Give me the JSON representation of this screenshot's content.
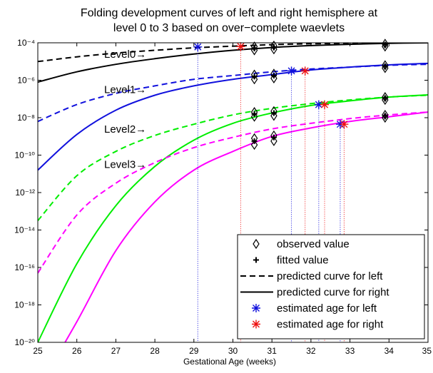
{
  "chart_data": {
    "type": "line",
    "title_line1": "Folding development curves of left and right hemisphere at",
    "title_line2": "level 0 to 3 based on over−complete waevlets",
    "xlabel": "Gestational Age (weeks)",
    "ylabel": "",
    "xlim": [
      25,
      35
    ],
    "ylim": [
      1e-20,
      0.0001
    ],
    "yscale": "log",
    "grid": false,
    "x_ticks": [
      25,
      26,
      27,
      28,
      29,
      30,
      31,
      32,
      33,
      34,
      35
    ],
    "x_tick_labels": [
      "25",
      "26",
      "27",
      "28",
      "29",
      "30",
      "31",
      "32",
      "33",
      "34",
      "35"
    ],
    "y_tick_exponents": [
      -4,
      -6,
      -8,
      -10,
      -12,
      -14,
      -16,
      -18,
      -20
    ],
    "y_tick_labels": [
      "10⁻⁴",
      "10⁻⁶",
      "10⁻⁸",
      "10⁻¹⁰",
      "10⁻¹²",
      "10⁻¹⁴",
      "10⁻¹⁶",
      "10⁻¹⁸",
      "10⁻²⁰"
    ],
    "x": [
      25,
      26,
      27,
      28,
      29,
      30,
      31,
      32,
      33,
      34,
      35
    ],
    "series": [
      {
        "name": "Level0 left",
        "level": 0,
        "side": "left",
        "color": "#000000",
        "dashed": true,
        "log10_values": [
          -5.0,
          -4.75,
          -4.55,
          -4.4,
          -4.27,
          -4.18,
          -4.1,
          -4.05,
          -4.02,
          -3.99,
          -3.97
        ]
      },
      {
        "name": "Level0 right",
        "level": 0,
        "side": "right",
        "color": "#000000",
        "dashed": false,
        "log10_values": [
          -6.1,
          -5.55,
          -5.15,
          -4.85,
          -4.6,
          -4.4,
          -4.25,
          -4.15,
          -4.08,
          -4.03,
          -4.0
        ]
      },
      {
        "name": "Level1 left",
        "level": 1,
        "side": "left",
        "color": "#1111dd",
        "dashed": true,
        "log10_values": [
          -8.2,
          -7.3,
          -6.7,
          -6.3,
          -5.95,
          -5.75,
          -5.55,
          -5.4,
          -5.3,
          -5.2,
          -5.15
        ]
      },
      {
        "name": "Level1 right",
        "level": 1,
        "side": "right",
        "color": "#1111dd",
        "dashed": false,
        "log10_values": [
          -10.8,
          -8.9,
          -7.6,
          -6.8,
          -6.3,
          -5.95,
          -5.7,
          -5.45,
          -5.3,
          -5.18,
          -5.1
        ]
      },
      {
        "name": "Level2 left",
        "level": 2,
        "side": "left",
        "color": "#00ee00",
        "dashed": true,
        "log10_values": [
          -13.5,
          -11.1,
          -9.8,
          -8.95,
          -8.35,
          -7.85,
          -7.5,
          -7.25,
          -7.05,
          -6.9,
          -6.8
        ]
      },
      {
        "name": "Level2 right",
        "level": 2,
        "side": "right",
        "color": "#00ee00",
        "dashed": false,
        "log10_values": [
          -20.0,
          -15.8,
          -12.7,
          -10.6,
          -9.2,
          -8.3,
          -7.75,
          -7.35,
          -7.1,
          -6.9,
          -6.78
        ]
      },
      {
        "name": "Level3 left",
        "level": 3,
        "side": "left",
        "color": "#ff00ff",
        "dashed": true,
        "log10_values": [
          -16.3,
          -13.2,
          -11.5,
          -10.4,
          -9.6,
          -9.05,
          -8.6,
          -8.3,
          -8.05,
          -7.85,
          -7.7
        ]
      },
      {
        "name": "Level3 right",
        "level": 3,
        "side": "right",
        "color": "#ff00ff",
        "dashed": false,
        "log10_values": [
          -22.5,
          -18.9,
          -15.1,
          -12.5,
          -10.8,
          -9.8,
          -9.0,
          -8.55,
          -8.2,
          -7.95,
          -7.7
        ]
      }
    ],
    "curve_labels": [
      {
        "text": "Level0→",
        "x": 26.7,
        "log10_y": -4.6
      },
      {
        "text": "Level1→",
        "x": 26.7,
        "log10_y": -6.5
      },
      {
        "text": "Level2→",
        "x": 26.7,
        "log10_y": -8.6
      },
      {
        "text": "Level3→",
        "x": 26.7,
        "log10_y": -10.5
      }
    ],
    "observed_values": [
      {
        "x": 30.55,
        "log10_y": -4.2
      },
      {
        "x": 30.55,
        "log10_y": -4.4
      },
      {
        "x": 31.05,
        "log10_y": -4.15
      },
      {
        "x": 31.05,
        "log10_y": -4.35
      },
      {
        "x": 33.9,
        "log10_y": -4.05
      },
      {
        "x": 33.9,
        "log10_y": -4.2
      },
      {
        "x": 30.55,
        "log10_y": -5.7
      },
      {
        "x": 30.55,
        "log10_y": -5.95
      },
      {
        "x": 31.05,
        "log10_y": -5.65
      },
      {
        "x": 31.05,
        "log10_y": -5.9
      },
      {
        "x": 33.9,
        "log10_y": -5.2
      },
      {
        "x": 33.9,
        "log10_y": -5.35
      },
      {
        "x": 30.55,
        "log10_y": -7.7
      },
      {
        "x": 30.55,
        "log10_y": -7.95
      },
      {
        "x": 31.05,
        "log10_y": -7.65
      },
      {
        "x": 31.05,
        "log10_y": -7.9
      },
      {
        "x": 33.9,
        "log10_y": -6.9
      },
      {
        "x": 33.9,
        "log10_y": -7.05
      },
      {
        "x": 30.55,
        "log10_y": -9.1
      },
      {
        "x": 30.55,
        "log10_y": -9.45
      },
      {
        "x": 31.05,
        "log10_y": -8.95
      },
      {
        "x": 31.05,
        "log10_y": -9.25
      },
      {
        "x": 33.9,
        "log10_y": -7.85
      },
      {
        "x": 33.9,
        "log10_y": -8.0
      }
    ],
    "fitted_values": [
      {
        "x": 30.55,
        "log10_y": -4.3
      },
      {
        "x": 31.05,
        "log10_y": -4.25
      },
      {
        "x": 33.9,
        "log10_y": -4.1
      },
      {
        "x": 30.55,
        "log10_y": -5.8
      },
      {
        "x": 31.05,
        "log10_y": -5.75
      },
      {
        "x": 33.9,
        "log10_y": -5.25
      },
      {
        "x": 30.55,
        "log10_y": -7.8
      },
      {
        "x": 31.05,
        "log10_y": -7.75
      },
      {
        "x": 33.9,
        "log10_y": -6.95
      },
      {
        "x": 30.55,
        "log10_y": -9.25
      },
      {
        "x": 31.05,
        "log10_y": -9.05
      },
      {
        "x": 33.9,
        "log10_y": -7.9
      }
    ],
    "estimated_age_left": [
      {
        "x": 29.1,
        "log10_y": -4.22
      },
      {
        "x": 31.5,
        "log10_y": -5.5
      },
      {
        "x": 32.2,
        "log10_y": -7.3
      },
      {
        "x": 32.75,
        "log10_y": -8.35
      }
    ],
    "estimated_age_right": [
      {
        "x": 30.2,
        "log10_y": -4.2
      },
      {
        "x": 31.85,
        "log10_y": -5.5
      },
      {
        "x": 32.35,
        "log10_y": -7.3
      },
      {
        "x": 32.85,
        "log10_y": -8.35
      }
    ],
    "legend_position": "bottom-right",
    "legend": [
      {
        "label": "observed value",
        "marker": "diamond",
        "color": "#000000"
      },
      {
        "label": "fitted value",
        "marker": "plus",
        "color": "#000000"
      },
      {
        "label": "predicted curve for left",
        "marker": "dashed-line",
        "color": "#000000"
      },
      {
        "label": "predicted curve for right",
        "marker": "solid-line",
        "color": "#000000"
      },
      {
        "label": "estimated age for left",
        "marker": "asterisk",
        "color": "#1111dd"
      },
      {
        "label": "estimated age for right",
        "marker": "asterisk",
        "color": "#ee1111"
      }
    ],
    "colors": {
      "left_marker": "#1111dd",
      "right_marker": "#ee1111",
      "axis": "#000000"
    }
  }
}
